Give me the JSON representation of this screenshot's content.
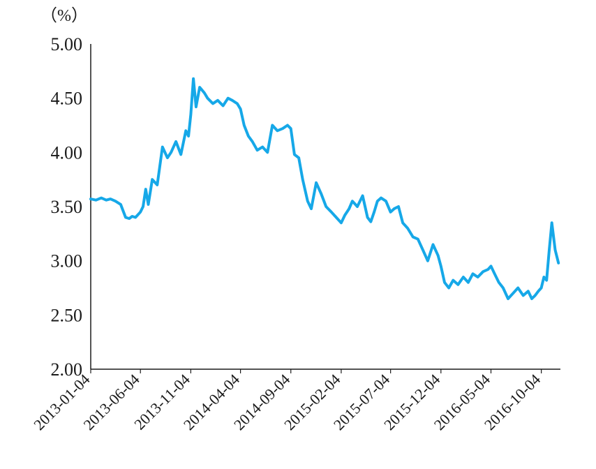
{
  "chart_data": {
    "type": "line",
    "title": "",
    "xlabel": "",
    "ylabel": "（%）",
    "ylim": [
      2.0,
      5.0
    ],
    "y_ticks": [
      "2.00",
      "2.50",
      "3.00",
      "3.50",
      "4.00",
      "4.50",
      "5.00"
    ],
    "x_tick_labels": [
      "2013-01-04",
      "2013-06-04",
      "2013-11-04",
      "2014-04-04",
      "2014-09-04",
      "2015-02-04",
      "2015-07-04",
      "2015-12-04",
      "2016-05-04",
      "2016-10-04"
    ],
    "grid": false,
    "legend": "none",
    "line_color": "#16a8e8",
    "series": [
      {
        "x": [
          "2013-01-04",
          "2013-01-20",
          "2013-02-05",
          "2013-02-20",
          "2013-03-05",
          "2013-03-20",
          "2013-04-05",
          "2013-04-20",
          "2013-05-01",
          "2013-05-10",
          "2013-05-20",
          "2013-06-04",
          "2013-06-12",
          "2013-06-20",
          "2013-06-28",
          "2013-07-10",
          "2013-07-25",
          "2013-08-10",
          "2013-08-25",
          "2013-09-05",
          "2013-09-20",
          "2013-10-05",
          "2013-10-20",
          "2013-10-28",
          "2013-11-04",
          "2013-11-12",
          "2013-11-20",
          "2013-12-01",
          "2013-12-15",
          "2013-12-25",
          "2014-01-10",
          "2014-01-25",
          "2014-02-10",
          "2014-02-25",
          "2014-03-10",
          "2014-03-25",
          "2014-04-04",
          "2014-04-15",
          "2014-04-28",
          "2014-05-10",
          "2014-05-25",
          "2014-06-10",
          "2014-06-25",
          "2014-07-10",
          "2014-07-25",
          "2014-08-10",
          "2014-08-25",
          "2014-09-04",
          "2014-09-15",
          "2014-09-28",
          "2014-10-10",
          "2014-10-25",
          "2014-11-05",
          "2014-11-20",
          "2014-12-05",
          "2014-12-20",
          "2015-01-05",
          "2015-01-20",
          "2015-02-04",
          "2015-02-15",
          "2015-02-28",
          "2015-03-10",
          "2015-03-25",
          "2015-04-10",
          "2015-04-25",
          "2015-05-05",
          "2015-05-15",
          "2015-05-25",
          "2015-06-05",
          "2015-06-20",
          "2015-07-04",
          "2015-07-15",
          "2015-07-28",
          "2015-08-10",
          "2015-08-25",
          "2015-09-10",
          "2015-09-25",
          "2015-10-10",
          "2015-10-25",
          "2015-11-10",
          "2015-11-25",
          "2015-12-04",
          "2015-12-15",
          "2015-12-28",
          "2016-01-10",
          "2016-01-25",
          "2016-02-10",
          "2016-02-25",
          "2016-03-10",
          "2016-03-25",
          "2016-04-10",
          "2016-04-25",
          "2016-05-04",
          "2016-05-15",
          "2016-05-28",
          "2016-06-10",
          "2016-06-25",
          "2016-07-10",
          "2016-07-25",
          "2016-08-10",
          "2016-08-25",
          "2016-09-05",
          "2016-09-15",
          "2016-09-25",
          "2016-10-04",
          "2016-10-12",
          "2016-10-20",
          "2016-10-28",
          "2016-11-05",
          "2016-11-15",
          "2016-11-25"
        ],
        "values": [
          3.57,
          3.56,
          3.58,
          3.56,
          3.57,
          3.55,
          3.52,
          3.4,
          3.39,
          3.41,
          3.4,
          3.45,
          3.5,
          3.66,
          3.52,
          3.75,
          3.7,
          4.05,
          3.95,
          4.0,
          4.1,
          3.98,
          4.2,
          4.15,
          4.35,
          4.68,
          4.42,
          4.6,
          4.55,
          4.5,
          4.45,
          4.48,
          4.43,
          4.5,
          4.48,
          4.45,
          4.4,
          4.25,
          4.15,
          4.1,
          4.02,
          4.05,
          4.0,
          4.25,
          4.2,
          4.22,
          4.25,
          4.22,
          3.98,
          3.95,
          3.75,
          3.55,
          3.48,
          3.72,
          3.62,
          3.5,
          3.45,
          3.4,
          3.35,
          3.42,
          3.48,
          3.55,
          3.5,
          3.6,
          3.4,
          3.36,
          3.45,
          3.55,
          3.58,
          3.55,
          3.45,
          3.48,
          3.5,
          3.35,
          3.3,
          3.22,
          3.2,
          3.1,
          3.0,
          3.15,
          3.05,
          2.95,
          2.8,
          2.75,
          2.82,
          2.78,
          2.85,
          2.8,
          2.88,
          2.85,
          2.9,
          2.92,
          2.95,
          2.88,
          2.8,
          2.75,
          2.65,
          2.7,
          2.75,
          2.68,
          2.72,
          2.65,
          2.68,
          2.72,
          2.75,
          2.85,
          2.82,
          3.1,
          3.35,
          3.1,
          2.98
        ]
      }
    ]
  }
}
